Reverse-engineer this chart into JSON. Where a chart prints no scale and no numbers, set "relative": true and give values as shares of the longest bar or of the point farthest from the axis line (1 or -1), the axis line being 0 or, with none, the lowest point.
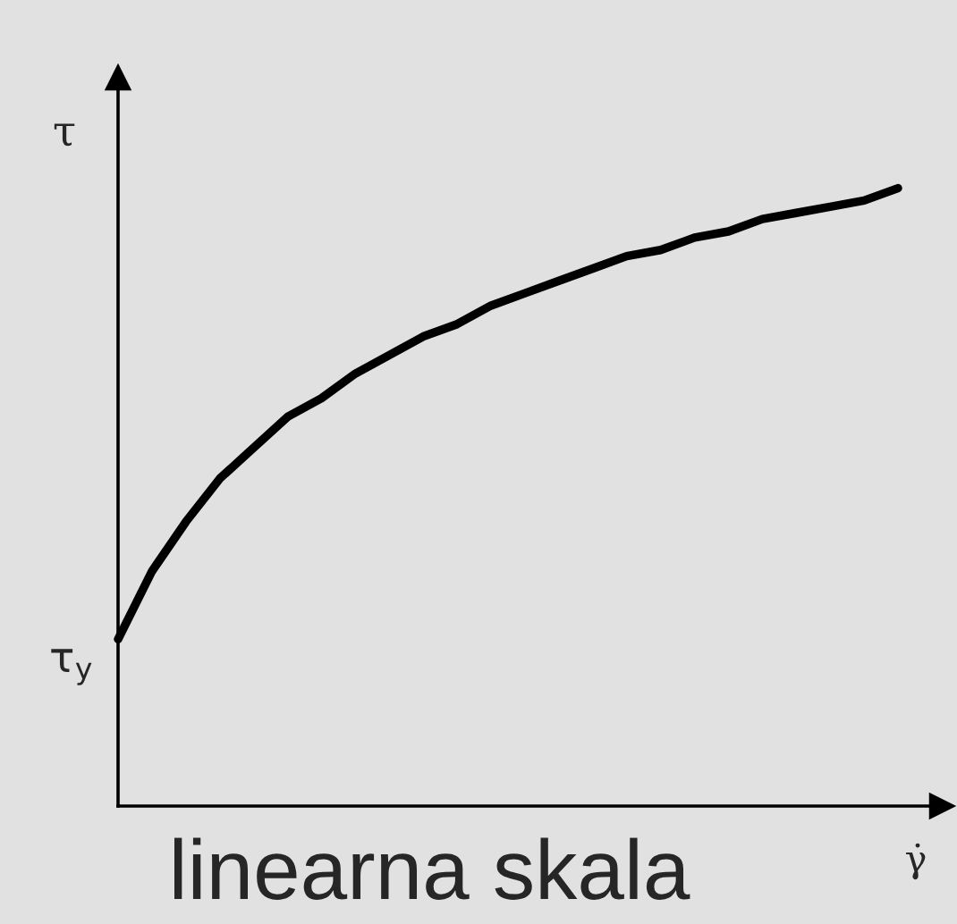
{
  "chart_data": {
    "type": "line",
    "ylabel": "τ",
    "xlabel": "γ̇",
    "relative": true,
    "categories": [
      null,
      null,
      null,
      null,
      null,
      null,
      null,
      null,
      null,
      null,
      null,
      null,
      null,
      null,
      null,
      null,
      null,
      null,
      null,
      null,
      null,
      null,
      null,
      null
    ],
    "series": [
      {
        "color": "#000000",
        "values": [
          0.27,
          0.38,
          0.46,
          0.53,
          0.58,
          0.63,
          0.66,
          0.7,
          0.73,
          0.76,
          0.78,
          0.81,
          0.83,
          0.85,
          0.87,
          0.89,
          0.9,
          0.92,
          0.93,
          0.95,
          0.96,
          0.97,
          0.98,
          1
        ]
      }
    ],
    "annotations": [
      "τ$_{y}$",
      "linearna skala"
    ]
  }
}
